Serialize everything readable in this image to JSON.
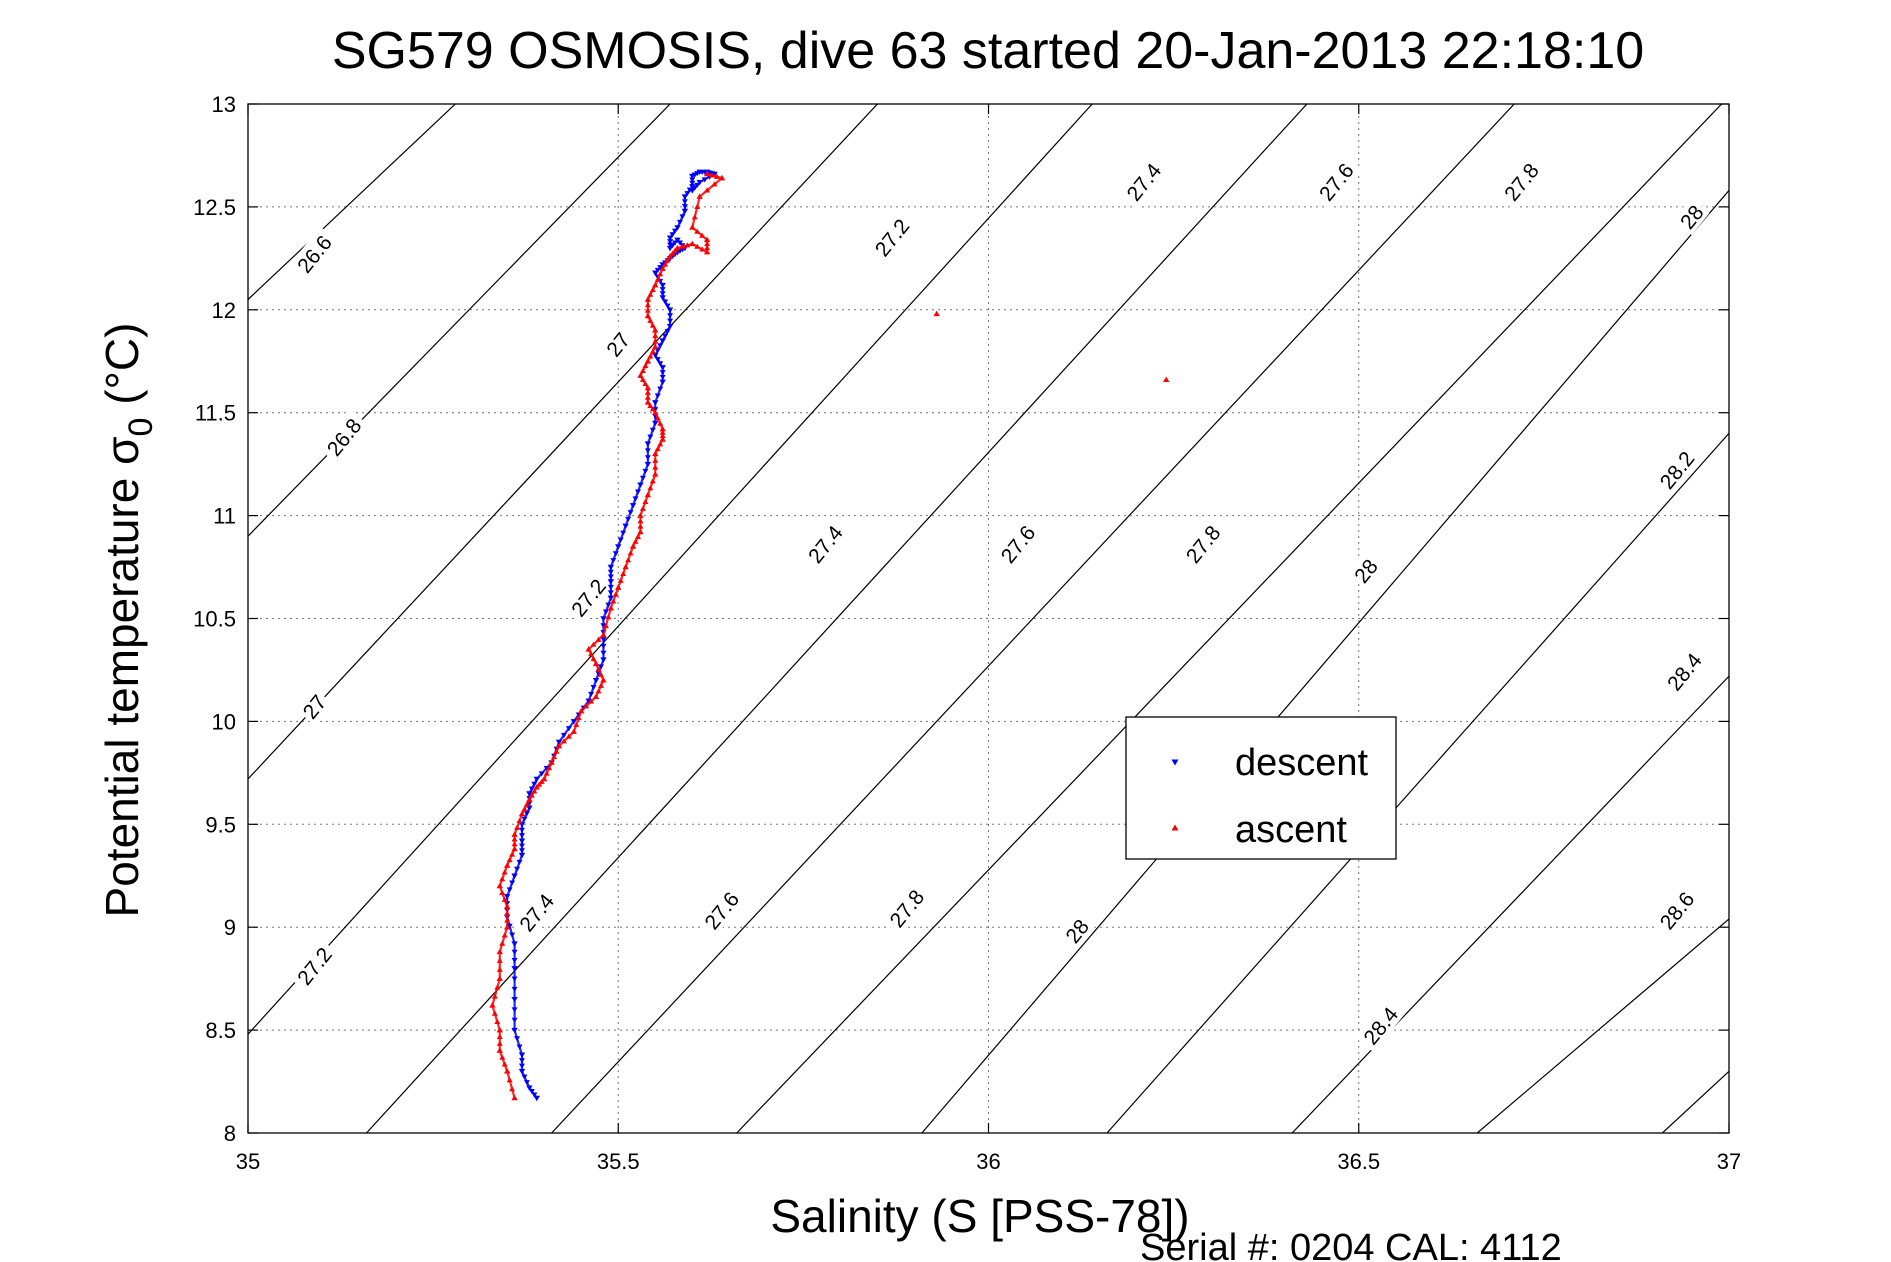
{
  "chart_data": {
    "type": "scatter",
    "title": "SG579 OSMOSIS, dive 63 started 20-Jan-2013 22:18:10",
    "xlabel": "Salinity (S [PSS-78])",
    "ylabel": "Potential temperature σ₀ (°C)",
    "ylabel_main": "Potential temperature ",
    "ylabel_sigma": "σ",
    "ylabel_sub": "0",
    "ylabel_unit": " (°C)",
    "footer": "Serial #: 0204  CAL: 4112",
    "xlim": [
      35,
      37
    ],
    "ylim": [
      8,
      13
    ],
    "x_ticks": [
      35,
      35.5,
      36,
      36.5,
      37
    ],
    "x_tick_labels": [
      "35",
      "35.5",
      "36",
      "36.5",
      "37"
    ],
    "y_ticks": [
      8,
      8.5,
      9,
      9.5,
      10,
      10.5,
      11,
      11.5,
      12,
      12.5,
      13
    ],
    "y_tick_labels": [
      "8",
      "8.5",
      "9",
      "9.5",
      "10",
      "10.5",
      "11",
      "11.5",
      "12",
      "12.5",
      "13"
    ],
    "grid": true,
    "legend_position": "center-right",
    "contours": {
      "description_values": [
        26.6,
        26.8,
        27,
        27.2,
        27.4,
        27.6,
        27.8,
        28,
        28.2,
        28.4,
        28.6,
        28.8
      ],
      "lines": [
        {
          "level": 26.6,
          "p1": [
            35.0,
            12.05
          ],
          "p2": [
            35.28,
            13.0
          ]
        },
        {
          "level": 26.8,
          "p1": [
            35.0,
            10.9
          ],
          "p2": [
            35.57,
            13.0
          ]
        },
        {
          "level": 27.0,
          "p1": [
            35.0,
            9.72
          ],
          "p2": [
            35.85,
            13.0
          ]
        },
        {
          "level": 27.2,
          "p1": [
            35.0,
            8.48
          ],
          "p2": [
            36.14,
            13.0
          ]
        },
        {
          "level": 27.4,
          "p1": [
            35.16,
            8.0
          ],
          "p2": [
            36.43,
            13.0
          ]
        },
        {
          "level": 27.6,
          "p1": [
            35.41,
            8.0
          ],
          "p2": [
            36.71,
            13.0
          ]
        },
        {
          "level": 27.8,
          "p1": [
            35.66,
            8.0
          ],
          "p2": [
            36.99,
            13.0
          ]
        },
        {
          "level": 28.0,
          "p1": [
            35.91,
            8.0
          ],
          "p2": [
            37.0,
            12.58
          ]
        },
        {
          "level": 28.2,
          "p1": [
            36.16,
            8.0
          ],
          "p2": [
            37.0,
            11.4
          ]
        },
        {
          "level": 28.4,
          "p1": [
            36.41,
            8.0
          ],
          "p2": [
            37.0,
            10.22
          ]
        },
        {
          "level": 28.6,
          "p1": [
            36.66,
            8.0
          ],
          "p2": [
            37.0,
            9.04
          ]
        },
        {
          "level": 28.8,
          "p1": [
            36.91,
            8.0
          ],
          "p2": [
            37.0,
            8.3
          ]
        }
      ],
      "labels": [
        {
          "text": "26.6",
          "s": 35.09,
          "t": 12.27
        },
        {
          "text": "26.8",
          "s": 35.13,
          "t": 11.38
        },
        {
          "text": "27",
          "s": 35.5,
          "t": 11.83
        },
        {
          "text": "27",
          "s": 35.09,
          "t": 10.07
        },
        {
          "text": "27.2",
          "s": 35.46,
          "t": 10.6
        },
        {
          "text": "27.2",
          "s": 35.09,
          "t": 8.81
        },
        {
          "text": "27.2",
          "s": 35.87,
          "t": 12.35
        },
        {
          "text": "27.4",
          "s": 36.21,
          "t": 12.62
        },
        {
          "text": "27.4",
          "s": 35.78,
          "t": 10.86
        },
        {
          "text": "27.4",
          "s": 35.39,
          "t": 9.07
        },
        {
          "text": "27.6",
          "s": 36.47,
          "t": 12.62
        },
        {
          "text": "27.6",
          "s": 36.04,
          "t": 10.86
        },
        {
          "text": "27.6",
          "s": 35.64,
          "t": 9.08
        },
        {
          "text": "27.8",
          "s": 36.72,
          "t": 12.62
        },
        {
          "text": "27.8",
          "s": 36.29,
          "t": 10.86
        },
        {
          "text": "27.8",
          "s": 35.89,
          "t": 9.09
        },
        {
          "text": "28",
          "s": 36.95,
          "t": 12.45
        },
        {
          "text": "28",
          "s": 36.51,
          "t": 10.73
        },
        {
          "text": "28",
          "s": 36.12,
          "t": 8.98
        },
        {
          "text": "28.2",
          "s": 36.93,
          "t": 11.22
        },
        {
          "text": "28.4",
          "s": 36.94,
          "t": 10.24
        },
        {
          "text": "28.4",
          "s": 36.53,
          "t": 8.52
        },
        {
          "text": "28.6",
          "s": 36.93,
          "t": 9.08
        }
      ]
    },
    "series": [
      {
        "name": "descent",
        "color": "#0000ff",
        "marker": "triangle-down",
        "x": [
          35.39,
          35.38,
          35.37,
          35.37,
          35.36,
          35.36,
          35.36,
          35.36,
          35.35,
          35.35,
          35.36,
          35.37,
          35.37,
          35.37,
          35.38,
          35.38,
          35.39,
          35.41,
          35.42,
          35.44,
          35.46,
          35.47,
          35.48,
          35.48,
          35.48,
          35.49,
          35.49,
          35.49,
          35.5,
          35.51,
          35.52,
          35.53,
          35.54,
          35.54,
          35.55,
          35.55,
          35.56,
          35.56,
          35.55,
          35.56,
          35.57,
          35.57,
          35.56,
          35.56,
          35.55,
          35.56,
          35.57,
          35.58,
          35.59,
          35.58,
          35.57,
          35.57,
          35.58,
          35.59,
          35.59,
          35.6,
          35.6,
          35.61,
          35.62,
          35.63,
          35.61,
          35.6
        ],
        "y": [
          8.17,
          8.22,
          8.3,
          8.38,
          8.5,
          8.65,
          8.8,
          8.92,
          9.05,
          9.15,
          9.25,
          9.35,
          9.42,
          9.5,
          9.58,
          9.65,
          9.72,
          9.8,
          9.9,
          10.0,
          10.1,
          10.2,
          10.3,
          10.4,
          10.5,
          10.6,
          10.68,
          10.75,
          10.85,
          10.95,
          11.05,
          11.15,
          11.25,
          11.35,
          11.45,
          11.55,
          11.65,
          11.72,
          11.78,
          11.85,
          11.92,
          12.0,
          12.06,
          12.12,
          12.18,
          12.22,
          12.25,
          12.28,
          12.3,
          12.34,
          12.3,
          12.35,
          12.4,
          12.48,
          12.55,
          12.6,
          12.65,
          12.67,
          12.67,
          12.66,
          12.62,
          12.58
        ]
      },
      {
        "name": "ascent",
        "color": "#ff0000",
        "marker": "triangle-up",
        "x": [
          35.36,
          35.35,
          35.34,
          35.34,
          35.33,
          35.34,
          35.34,
          35.35,
          35.35,
          35.34,
          35.35,
          35.36,
          35.36,
          35.37,
          35.38,
          35.39,
          35.4,
          35.41,
          35.42,
          35.44,
          35.45,
          35.47,
          35.48,
          35.47,
          35.46,
          35.48,
          35.49,
          35.5,
          35.51,
          35.52,
          35.53,
          35.53,
          35.54,
          35.55,
          35.55,
          35.56,
          35.56,
          35.55,
          35.54,
          35.54,
          35.53,
          35.54,
          35.55,
          35.55,
          35.54,
          35.54,
          35.55,
          35.56,
          35.57,
          35.58,
          35.6,
          35.62,
          35.62,
          35.6,
          35.61,
          35.64,
          35.62,
          35.93,
          36.24
        ],
        "y": [
          8.17,
          8.3,
          8.4,
          8.5,
          8.62,
          8.75,
          8.88,
          9.0,
          9.1,
          9.2,
          9.3,
          9.38,
          9.45,
          9.55,
          9.62,
          9.68,
          9.72,
          9.8,
          9.88,
          9.95,
          10.05,
          10.12,
          10.2,
          10.28,
          10.35,
          10.42,
          10.55,
          10.65,
          10.75,
          10.85,
          10.92,
          11.0,
          11.1,
          11.2,
          11.3,
          11.37,
          11.42,
          11.5,
          11.55,
          11.62,
          11.68,
          11.75,
          11.82,
          11.9,
          11.97,
          12.05,
          12.12,
          12.2,
          12.26,
          12.3,
          12.32,
          12.28,
          12.34,
          12.4,
          12.55,
          12.64,
          12.66,
          11.98,
          11.66
        ]
      }
    ]
  },
  "legend": {
    "descent_label": "descent",
    "ascent_label": "ascent"
  }
}
